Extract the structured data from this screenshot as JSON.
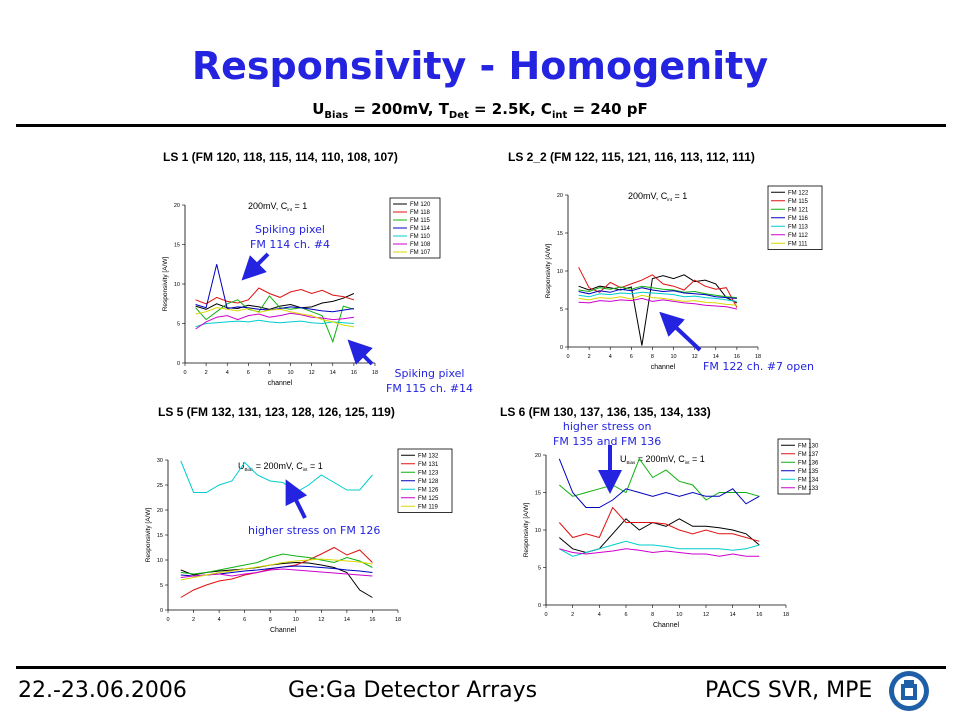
{
  "header": {
    "title": "Responsivity - Homogenity",
    "subtitle": {
      "u": "U",
      "u_sub": "Bias",
      "u_val": " = 200mV, T",
      "t_sub": "Det",
      "t_val": " = 2.5K, C",
      "c_sub": "int",
      "c_val": " = 240 pF"
    }
  },
  "footer": {
    "date": "22.-23.06.2006",
    "center": "Ge:Ga Detector Arrays",
    "right": "PACS SVR, MPE"
  },
  "annotations": {
    "a1": "Spiking pixel",
    "a2": "FM 114  ch.  #4",
    "a3": "Spiking pixel",
    "a4": "FM 115  ch.  #14",
    "a5": "FM 122  ch.  #7 open",
    "a6": "higher stress on FM 126",
    "a7": "higher stress on",
    "a8": "FM 135  and FM 136"
  },
  "chart_data": [
    {
      "panel_title": "LS 1 (FM 120, 118, 115, 114, 110, 108, 107)",
      "type": "line",
      "inner_label": "200mV, C",
      "inner_sub": "int",
      "inner_tail": " = 1",
      "xlabel": "channel",
      "ylabel": "Responsivity [A/W]",
      "xlim": [
        0,
        18
      ],
      "ylim": [
        0,
        20
      ],
      "xticks": [
        0,
        2,
        4,
        6,
        8,
        10,
        12,
        14,
        16,
        18
      ],
      "yticks": [
        0,
        5,
        10,
        15,
        20
      ],
      "x": [
        1,
        2,
        3,
        4,
        5,
        6,
        7,
        8,
        9,
        10,
        11,
        12,
        13,
        14,
        15,
        16
      ],
      "series": [
        {
          "name": "FM 120",
          "color": "#000000",
          "values": [
            7.2,
            6.8,
            7.5,
            7.0,
            6.9,
            7.3,
            7.1,
            6.8,
            7.2,
            7.4,
            7.0,
            7.1,
            7.6,
            7.8,
            8.2,
            8.8
          ]
        },
        {
          "name": "FM 118",
          "color": "#e01010",
          "values": [
            8.0,
            7.5,
            8.3,
            7.8,
            7.6,
            8.0,
            9.5,
            8.8,
            8.3,
            9.0,
            9.3,
            8.8,
            9.2,
            8.6,
            8.4,
            8.0
          ]
        },
        {
          "name": "FM 115",
          "color": "#10b010",
          "values": [
            7.0,
            5.5,
            6.5,
            7.5,
            8.0,
            6.8,
            6.5,
            8.5,
            7.0,
            6.8,
            7.0,
            6.5,
            6.0,
            2.7,
            7.2,
            6.8
          ]
        },
        {
          "name": "FM 114",
          "color": "#0000c0",
          "values": [
            7.4,
            7.0,
            12.5,
            6.9,
            7.1,
            7.0,
            6.8,
            6.7,
            6.9,
            7.1,
            7.0,
            6.8,
            6.6,
            6.5,
            6.7,
            6.9
          ]
        },
        {
          "name": "FM 110",
          "color": "#00cccc",
          "values": [
            4.6,
            5.0,
            5.1,
            5.2,
            5.3,
            5.2,
            5.4,
            5.2,
            5.1,
            5.2,
            5.3,
            5.1,
            5.0,
            5.2,
            5.1,
            5.0
          ]
        },
        {
          "name": "FM 108",
          "color": "#cc00cc",
          "values": [
            4.3,
            5.2,
            5.8,
            6.0,
            5.5,
            6.0,
            6.2,
            5.8,
            6.0,
            6.3,
            6.1,
            5.8,
            5.7,
            5.5,
            5.6,
            5.8
          ]
        },
        {
          "name": "FM 107",
          "color": "#d8d800",
          "values": [
            6.2,
            6.5,
            7.0,
            6.8,
            6.6,
            6.9,
            6.4,
            6.7,
            6.8,
            6.5,
            6.2,
            6.0,
            5.5,
            5.2,
            4.8,
            4.6
          ]
        }
      ]
    },
    {
      "panel_title": "LS 2_2 (FM 122, 115, 121, 116, 113, 112, 111)",
      "type": "line",
      "inner_label": "200mV, C",
      "inner_sub": "int",
      "inner_tail": " = 1",
      "xlabel": "channel",
      "ylabel": "Responsivity [A/W]",
      "xlim": [
        0,
        18
      ],
      "ylim": [
        0,
        20
      ],
      "xticks": [
        0,
        2,
        4,
        6,
        8,
        10,
        12,
        14,
        16,
        18
      ],
      "yticks": [
        0,
        5,
        10,
        15,
        20
      ],
      "x": [
        1,
        2,
        3,
        4,
        5,
        6,
        7,
        8,
        9,
        10,
        11,
        12,
        13,
        14,
        15,
        16
      ],
      "series": [
        {
          "name": "FM 122",
          "color": "#000000",
          "values": [
            8.0,
            7.5,
            8.0,
            7.8,
            7.5,
            7.9,
            0.2,
            9.0,
            9.4,
            9.0,
            9.5,
            8.6,
            8.8,
            8.3,
            6.5,
            5.8
          ]
        },
        {
          "name": "FM 115",
          "color": "#e01010",
          "values": [
            10.5,
            7.8,
            7.2,
            8.5,
            7.8,
            8.3,
            8.8,
            9.5,
            8.3,
            8.0,
            7.5,
            8.8,
            8.0,
            7.6,
            7.8,
            5.2
          ]
        },
        {
          "name": "FM 121",
          "color": "#10b010",
          "values": [
            7.5,
            7.3,
            7.8,
            7.6,
            7.9,
            7.6,
            8.0,
            7.8,
            7.6,
            7.5,
            7.2,
            7.3,
            7.0,
            6.8,
            6.6,
            6.5
          ]
        },
        {
          "name": "FM 116",
          "color": "#0000c0",
          "values": [
            7.3,
            7.0,
            7.4,
            7.2,
            7.6,
            7.4,
            7.8,
            7.5,
            7.3,
            7.4,
            7.1,
            7.0,
            6.9,
            6.6,
            6.5,
            6.4
          ]
        },
        {
          "name": "FM 113",
          "color": "#00cccc",
          "values": [
            6.8,
            6.6,
            7.0,
            6.9,
            7.1,
            7.0,
            7.2,
            7.1,
            7.0,
            6.9,
            6.6,
            6.7,
            6.5,
            6.4,
            6.2,
            6.0
          ]
        },
        {
          "name": "FM 112",
          "color": "#cc00cc",
          "values": [
            5.9,
            5.8,
            6.1,
            6.0,
            6.2,
            6.1,
            6.4,
            6.0,
            6.2,
            6.0,
            5.8,
            5.7,
            5.5,
            5.4,
            5.3,
            5.0
          ]
        },
        {
          "name": "FM 111",
          "color": "#d8d800",
          "values": [
            6.4,
            6.2,
            6.5,
            6.4,
            6.6,
            6.3,
            6.8,
            6.5,
            6.4,
            6.2,
            6.0,
            6.1,
            5.9,
            5.8,
            5.6,
            5.5
          ]
        }
      ]
    },
    {
      "panel_title": "LS 5 (FM 132, 131, 123, 128, 126, 125, 119)",
      "type": "line",
      "inner_label": "U",
      "inner_pre_sub": "Bias",
      "inner_mid": " = 200mV, C",
      "inner_sub": "int",
      "inner_tail": " = 1",
      "xlabel": "Channel",
      "ylabel": "Responsivity [A/W]",
      "xlim": [
        0,
        18
      ],
      "ylim": [
        0,
        30
      ],
      "xticks": [
        0,
        2,
        4,
        6,
        8,
        10,
        12,
        14,
        16,
        18
      ],
      "yticks": [
        0,
        5,
        10,
        15,
        20,
        25,
        30
      ],
      "x": [
        1,
        2,
        3,
        4,
        5,
        6,
        7,
        8,
        9,
        10,
        11,
        12,
        13,
        14,
        15,
        16
      ],
      "series": [
        {
          "name": "FM 132",
          "color": "#000000",
          "values": [
            8.0,
            7.0,
            7.5,
            7.8,
            8.0,
            8.2,
            8.5,
            9.0,
            9.3,
            9.5,
            9.4,
            9.0,
            8.5,
            7.5,
            4.0,
            2.5
          ]
        },
        {
          "name": "FM 131",
          "color": "#e01010",
          "values": [
            2.5,
            4.0,
            5.0,
            5.8,
            6.2,
            7.0,
            7.5,
            8.2,
            8.6,
            9.0,
            10.0,
            11.2,
            12.5,
            11.0,
            12.0,
            9.5
          ]
        },
        {
          "name": "FM 123",
          "color": "#10b010",
          "values": [
            7.5,
            7.2,
            7.5,
            8.0,
            8.5,
            9.0,
            9.5,
            10.5,
            11.2,
            10.8,
            10.5,
            10.0,
            9.5,
            10.5,
            9.8,
            8.5
          ]
        },
        {
          "name": "FM 128",
          "color": "#0000c0",
          "values": [
            7.0,
            6.8,
            7.0,
            7.2,
            7.5,
            7.8,
            8.0,
            8.3,
            8.6,
            8.8,
            8.7,
            8.5,
            8.3,
            8.0,
            7.8,
            7.5
          ]
        },
        {
          "name": "FM 126",
          "color": "#00cccc",
          "values": [
            29.8,
            23.5,
            23.5,
            25.0,
            25.8,
            29.5,
            27.0,
            25.8,
            25.5,
            23.5,
            25.0,
            27.0,
            25.5,
            24.0,
            24.0,
            27.0
          ]
        },
        {
          "name": "FM 125",
          "color": "#cc00cc",
          "values": [
            6.5,
            6.8,
            7.0,
            7.2,
            6.8,
            7.2,
            7.5,
            8.0,
            8.2,
            8.0,
            7.8,
            7.6,
            7.4,
            7.2,
            7.0,
            6.8
          ]
        },
        {
          "name": "FM 119",
          "color": "#d8d800",
          "values": [
            6.0,
            6.5,
            7.0,
            7.5,
            7.8,
            8.2,
            8.6,
            9.0,
            9.5,
            9.8,
            10.0,
            10.2,
            10.0,
            9.8,
            9.6,
            9.2
          ]
        }
      ]
    },
    {
      "panel_title": "LS 6 (FM 130, 137, 136, 135, 134, 133)",
      "type": "line",
      "inner_label": "U",
      "inner_pre_sub": "Bias",
      "inner_mid": " = 200mV, C",
      "inner_sub": "int",
      "inner_tail": " = 1",
      "xlabel": "Channel",
      "ylabel": "Responsivity [A/W]",
      "xlim": [
        0,
        18
      ],
      "ylim": [
        0,
        20
      ],
      "xticks": [
        0,
        2,
        4,
        6,
        8,
        10,
        12,
        14,
        16,
        18
      ],
      "yticks": [
        0,
        5,
        10,
        15,
        20
      ],
      "x": [
        1,
        2,
        3,
        4,
        5,
        6,
        7,
        8,
        9,
        10,
        11,
        12,
        13,
        14,
        15,
        16
      ],
      "series": [
        {
          "name": "FM 130",
          "color": "#000000",
          "values": [
            9.0,
            7.5,
            7.0,
            7.5,
            9.5,
            11.5,
            10.0,
            11.0,
            10.5,
            11.5,
            10.5,
            10.5,
            10.3,
            10.0,
            9.5,
            8.0
          ]
        },
        {
          "name": "FM 137",
          "color": "#e01010",
          "values": [
            11.0,
            9.0,
            9.5,
            9.0,
            13.0,
            11.0,
            11.0,
            11.0,
            10.8,
            10.0,
            9.5,
            10.0,
            9.5,
            9.5,
            9.0,
            8.5
          ]
        },
        {
          "name": "FM 136",
          "color": "#10b010",
          "values": [
            16.0,
            14.5,
            15.0,
            15.5,
            16.0,
            15.0,
            19.5,
            17.0,
            18.0,
            16.5,
            16.0,
            14.0,
            15.0,
            15.0,
            15.0,
            14.5
          ]
        },
        {
          "name": "FM 135",
          "color": "#0000c0",
          "values": [
            19.5,
            15.0,
            13.0,
            13.0,
            14.0,
            15.5,
            15.0,
            14.5,
            15.0,
            14.5,
            15.0,
            14.5,
            14.5,
            15.5,
            13.5,
            14.5
          ]
        },
        {
          "name": "FM 134",
          "color": "#00cccc",
          "values": [
            7.5,
            6.5,
            7.0,
            7.5,
            8.0,
            8.5,
            8.0,
            8.0,
            7.8,
            7.5,
            7.5,
            7.5,
            7.5,
            7.3,
            7.5,
            8.0
          ]
        },
        {
          "name": "FM 133",
          "color": "#cc00cc",
          "values": [
            7.5,
            7.0,
            6.8,
            7.0,
            7.2,
            7.5,
            7.3,
            7.0,
            7.2,
            7.0,
            6.8,
            6.8,
            6.5,
            6.8,
            6.5,
            6.5
          ]
        }
      ]
    }
  ]
}
